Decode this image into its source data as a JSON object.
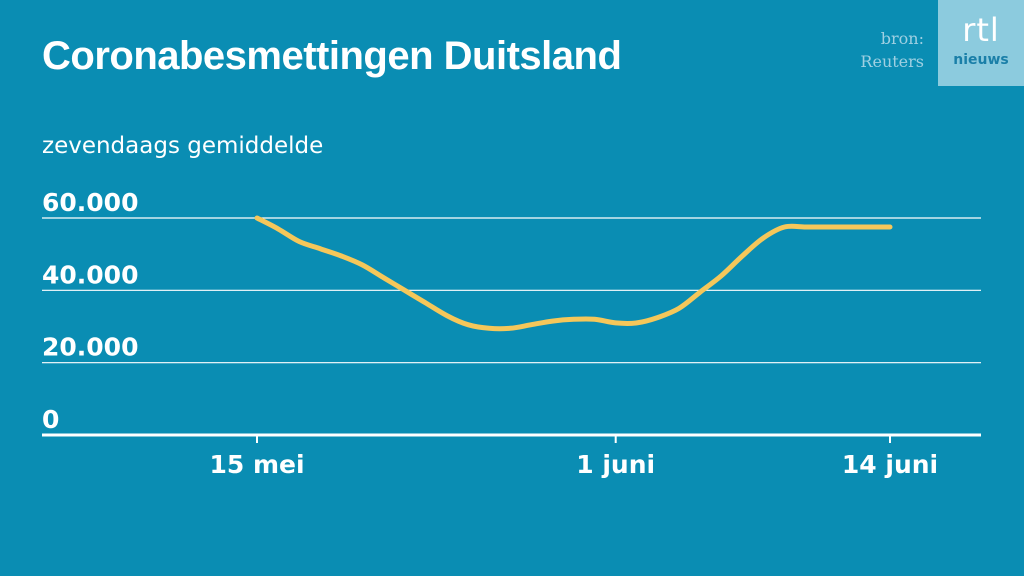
{
  "header": {
    "title": "Coronabesmettingen Duitsland",
    "subtitle": "zevendaags gemiddelde",
    "source_line1": "bron:",
    "source_line2": "Reuters"
  },
  "logo": {
    "brand": "rtl",
    "sub": "nieuws"
  },
  "colors": {
    "background": "#0a8db3",
    "line": "#f5c75a",
    "grid": "#ffffff",
    "text": "#ffffff"
  },
  "chart_data": {
    "type": "line",
    "title": "Coronabesmettingen Duitsland",
    "subtitle": "zevendaags gemiddelde",
    "xlabel": "",
    "ylabel": "",
    "ylim": [
      0,
      60000
    ],
    "yticks": [
      0,
      20000,
      40000,
      60000
    ],
    "ytick_labels": [
      "0",
      "20.000",
      "40.000",
      "60.000"
    ],
    "xticks": [
      "2020-05-15",
      "2020-06-01",
      "2020-06-14"
    ],
    "xtick_labels": [
      "15 mei",
      "1 juni",
      "14 juni"
    ],
    "grid": true,
    "legend": "none",
    "series": [
      {
        "x": [
          "2020-05-15",
          "2020-05-16",
          "2020-05-17",
          "2020-05-18",
          "2020-05-19",
          "2020-05-20",
          "2020-05-21",
          "2020-05-22",
          "2020-05-23",
          "2020-05-24",
          "2020-05-25",
          "2020-05-26",
          "2020-05-27",
          "2020-05-28",
          "2020-05-29",
          "2020-05-30",
          "2020-05-31",
          "2020-06-01",
          "2020-06-02",
          "2020-06-03",
          "2020-06-04",
          "2020-06-05",
          "2020-06-06",
          "2020-06-07",
          "2020-06-08",
          "2020-06-09",
          "2020-06-10",
          "2020-06-11",
          "2020-06-12",
          "2020-06-13",
          "2020-06-14"
        ],
        "values": [
          60000,
          57000,
          53500,
          51500,
          49500,
          47000,
          43500,
          40000,
          36500,
          33000,
          30500,
          29500,
          29500,
          30500,
          31500,
          32000,
          32000,
          31000,
          31000,
          32500,
          35000,
          39500,
          44000,
          49500,
          54500,
          57500,
          57500,
          57500,
          57500,
          57500,
          57500
        ]
      }
    ]
  }
}
